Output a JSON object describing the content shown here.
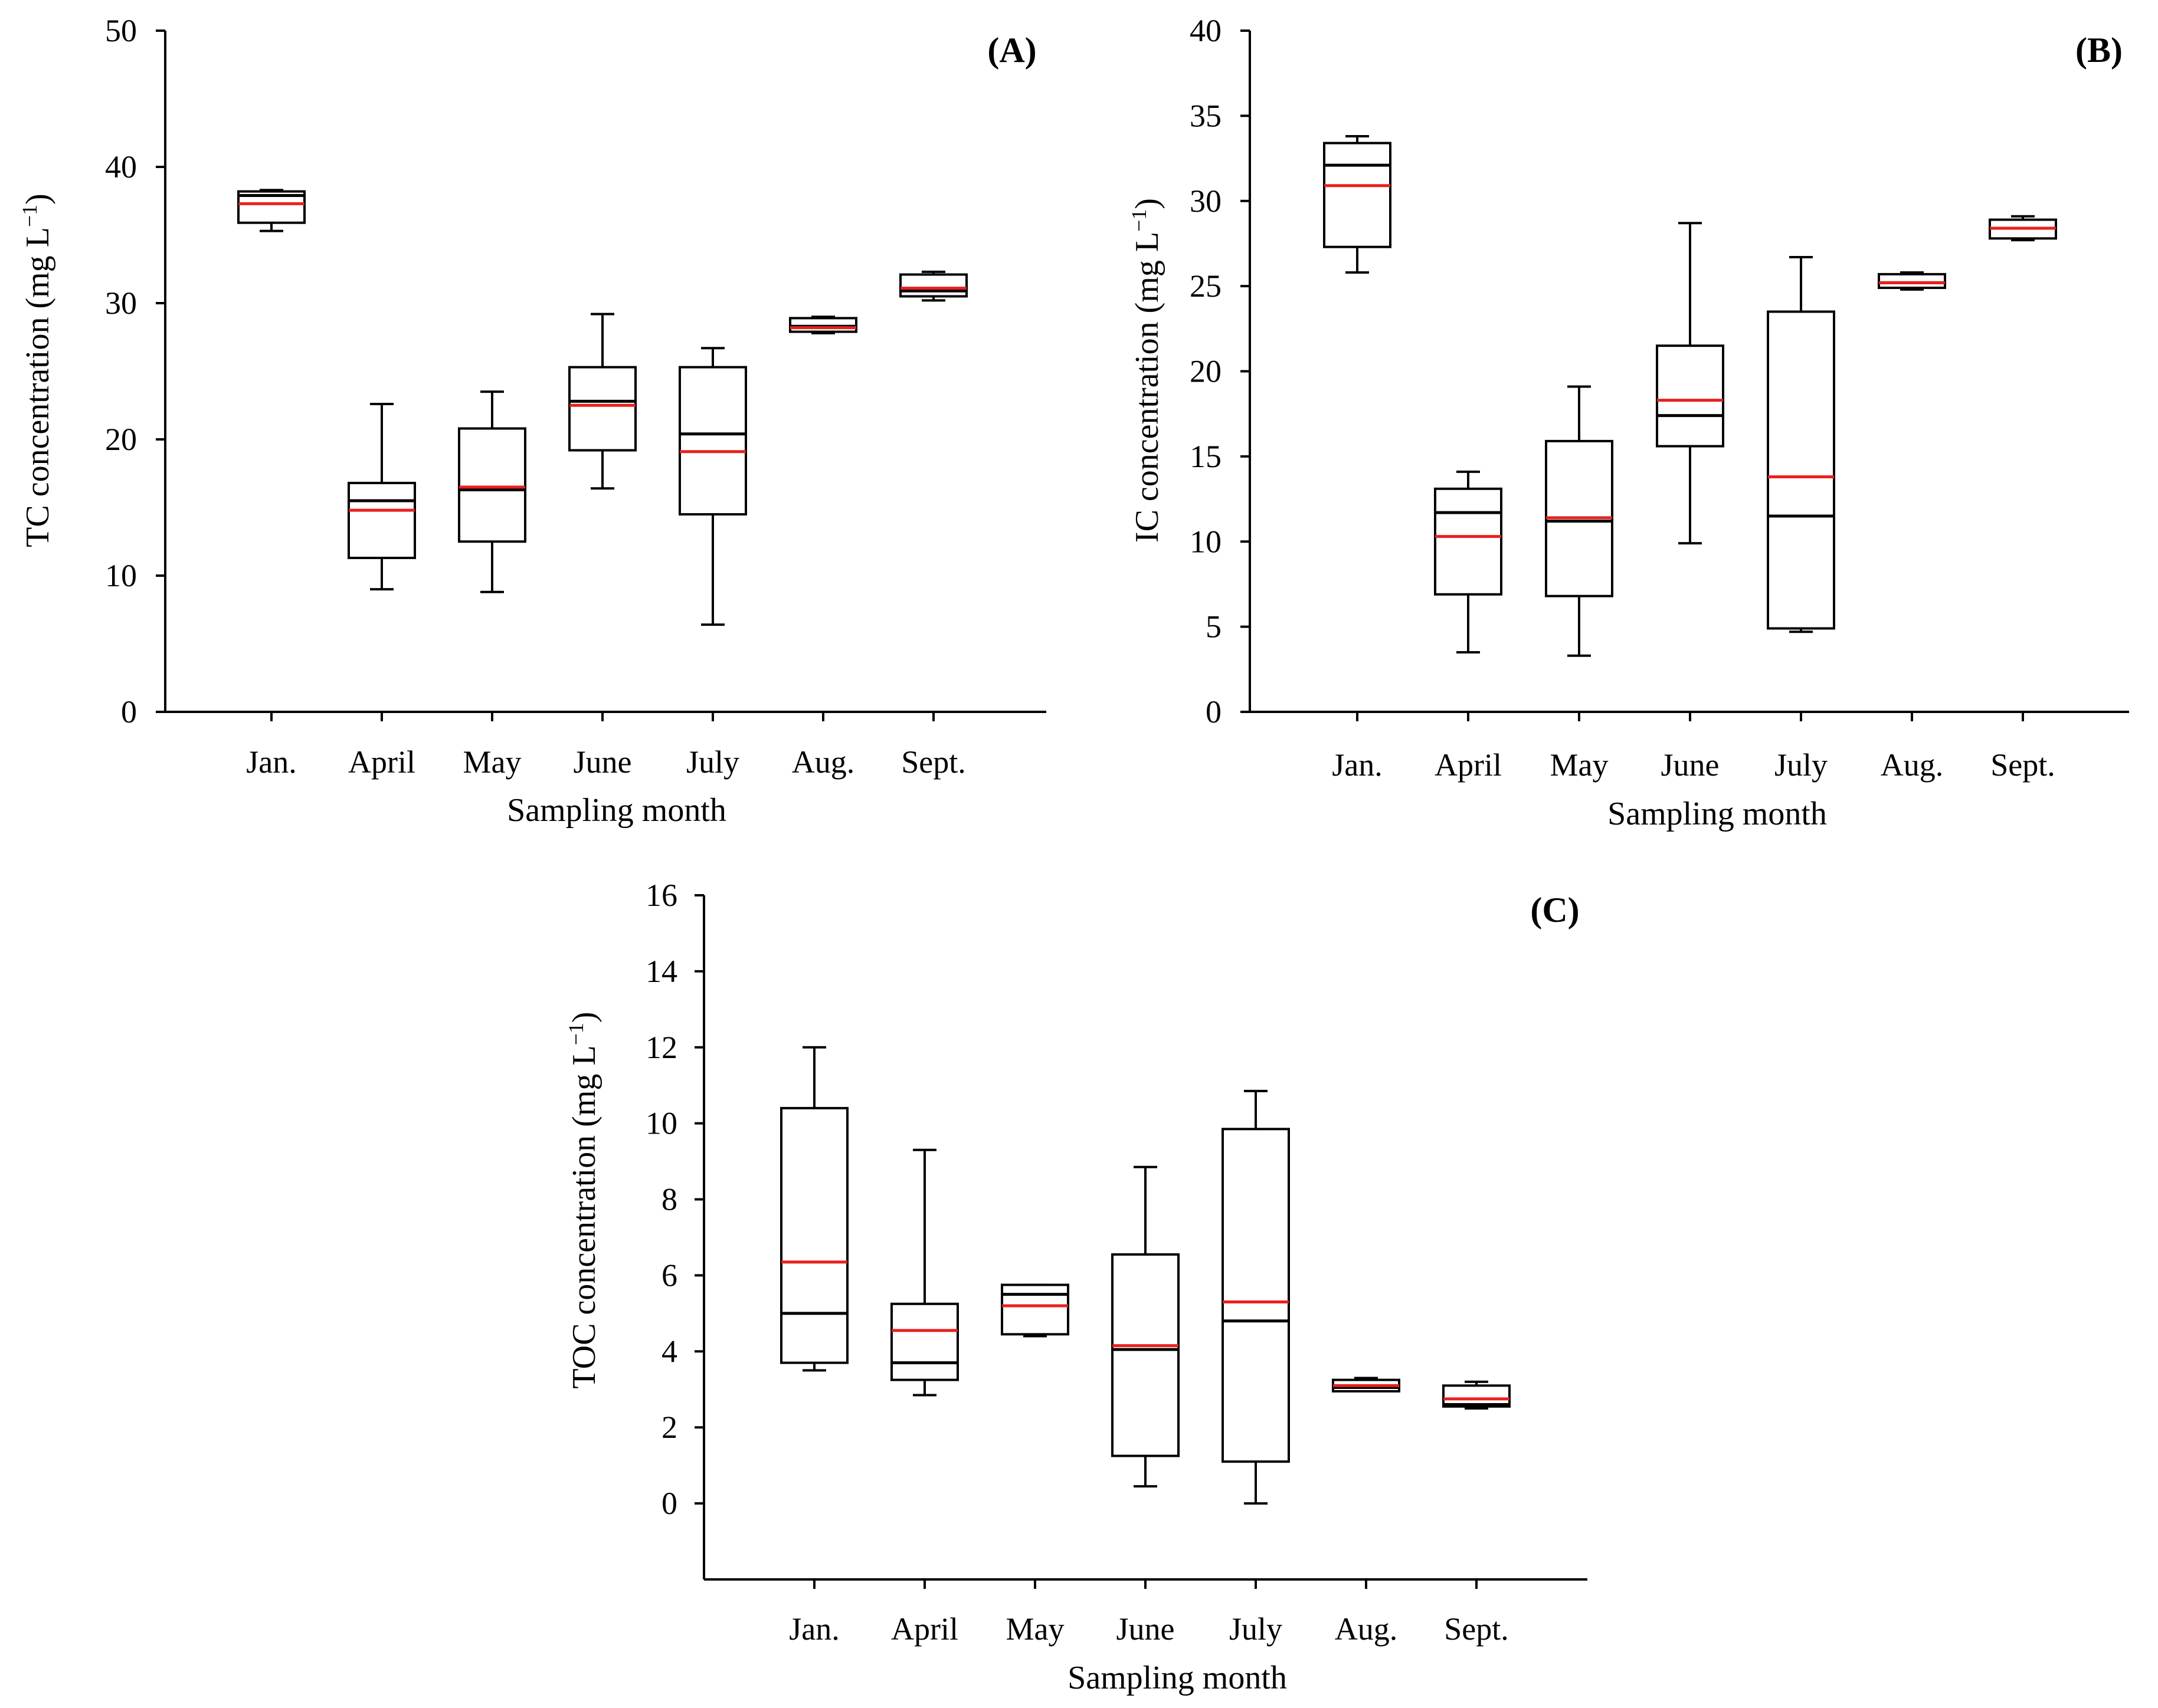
{
  "chart_data": [
    {
      "type": "box",
      "panel": "(A)",
      "title": "",
      "xlabel": "Sampling month",
      "ylabel": "TC concentration (mg L",
      "ylabel_sup": "−1",
      "ylabel_close": ")",
      "ylim": [
        0,
        50
      ],
      "yticks": [
        0,
        10,
        20,
        30,
        40,
        50
      ],
      "yticks_text": [
        "0",
        "10",
        "20",
        "30",
        "40",
        "50"
      ],
      "categories": [
        "Jan.",
        "April",
        "May",
        "June",
        "July",
        "Aug.",
        "Sept."
      ],
      "boxes": [
        {
          "min": 35.3,
          "q1": 35.9,
          "median": 37.9,
          "mean": 37.3,
          "q3": 38.2,
          "max": 38.3
        },
        {
          "min": 9.0,
          "q1": 11.3,
          "median": 15.5,
          "mean": 14.8,
          "q3": 16.8,
          "max": 22.6
        },
        {
          "min": 8.8,
          "q1": 12.5,
          "median": 16.3,
          "mean": 16.5,
          "q3": 20.8,
          "max": 23.5
        },
        {
          "min": 16.4,
          "q1": 19.2,
          "median": 22.8,
          "mean": 22.5,
          "q3": 25.3,
          "max": 29.2
        },
        {
          "min": 6.4,
          "q1": 14.5,
          "median": 20.4,
          "mean": 19.1,
          "q3": 25.3,
          "max": 26.7
        },
        {
          "min": 27.8,
          "q1": 27.9,
          "median": 28.3,
          "mean": 28.2,
          "q3": 28.9,
          "max": 29.0
        },
        {
          "min": 30.2,
          "q1": 30.5,
          "median": 30.9,
          "mean": 31.1,
          "q3": 32.1,
          "max": 32.3
        }
      ],
      "median_color": "#000000",
      "mean_color": "#e8201e"
    },
    {
      "type": "box",
      "panel": "(B)",
      "title": "",
      "xlabel": "Sampling month",
      "ylabel": "IC concentration (mg L",
      "ylabel_sup": "−1",
      "ylabel_close": ")",
      "ylim": [
        0,
        40
      ],
      "yticks": [
        0,
        5,
        10,
        15,
        20,
        25,
        30,
        35,
        40
      ],
      "yticks_text": [
        "0",
        "5",
        "10",
        "15",
        "20",
        "25",
        "30",
        "35",
        "40"
      ],
      "categories": [
        "Jan.",
        "April",
        "May",
        "June",
        "July",
        "Aug.",
        "Sept."
      ],
      "boxes": [
        {
          "min": 25.8,
          "q1": 27.3,
          "median": 32.1,
          "mean": 30.9,
          "q3": 33.4,
          "max": 33.8
        },
        {
          "min": 3.5,
          "q1": 6.9,
          "median": 11.7,
          "mean": 10.3,
          "q3": 13.1,
          "max": 14.1
        },
        {
          "min": 3.3,
          "q1": 6.8,
          "median": 11.2,
          "mean": 11.4,
          "q3": 15.9,
          "max": 19.1
        },
        {
          "min": 9.9,
          "q1": 15.6,
          "median": 17.4,
          "mean": 18.3,
          "q3": 21.5,
          "max": 28.7
        },
        {
          "min": 4.7,
          "q1": 4.9,
          "median": 11.5,
          "mean": 13.8,
          "q3": 23.5,
          "max": 26.7
        },
        {
          "min": 24.8,
          "q1": 24.9,
          "median": 25.2,
          "mean": 25.2,
          "q3": 25.7,
          "max": 25.8
        },
        {
          "min": 27.7,
          "q1": 27.8,
          "median": 28.4,
          "mean": 28.4,
          "q3": 28.9,
          "max": 29.1
        }
      ],
      "median_color": "#000000",
      "mean_color": "#e8201e"
    },
    {
      "type": "box",
      "panel": "(C)",
      "title": "",
      "xlabel": "Sampling month",
      "ylabel": "TOC concentration (mg L",
      "ylabel_sup": "−1",
      "ylabel_close": ")",
      "ylim": [
        -2,
        16
      ],
      "yticks": [
        0,
        2,
        4,
        6,
        8,
        10,
        12,
        14,
        16
      ],
      "yticks_text": [
        "0",
        "2",
        "4",
        "6",
        "8",
        "10",
        "12",
        "14",
        "16"
      ],
      "categories": [
        "Jan.",
        "April",
        "May",
        "June",
        "July",
        "Aug.",
        "Sept."
      ],
      "boxes": [
        {
          "min": 3.5,
          "q1": 3.7,
          "median": 5.0,
          "mean": 6.35,
          "q3": 10.4,
          "max": 12.0
        },
        {
          "min": 2.85,
          "q1": 3.25,
          "median": 3.7,
          "mean": 4.55,
          "q3": 5.25,
          "max": 9.3
        },
        {
          "min": 4.4,
          "q1": 4.45,
          "median": 5.5,
          "mean": 5.2,
          "q3": 5.75,
          "max": 5.75
        },
        {
          "min": 0.45,
          "q1": 1.25,
          "median": 4.05,
          "mean": 4.15,
          "q3": 6.55,
          "max": 8.85
        },
        {
          "min": 0.0,
          "q1": 1.1,
          "median": 4.8,
          "mean": 5.3,
          "q3": 9.85,
          "max": 10.85
        },
        {
          "min": 2.95,
          "q1": 2.95,
          "median": 3.05,
          "mean": 3.1,
          "q3": 3.25,
          "max": 3.3
        },
        {
          "min": 2.5,
          "q1": 2.55,
          "median": 2.6,
          "mean": 2.75,
          "q3": 3.1,
          "max": 3.2
        }
      ],
      "median_color": "#000000",
      "mean_color": "#e8201e"
    }
  ]
}
